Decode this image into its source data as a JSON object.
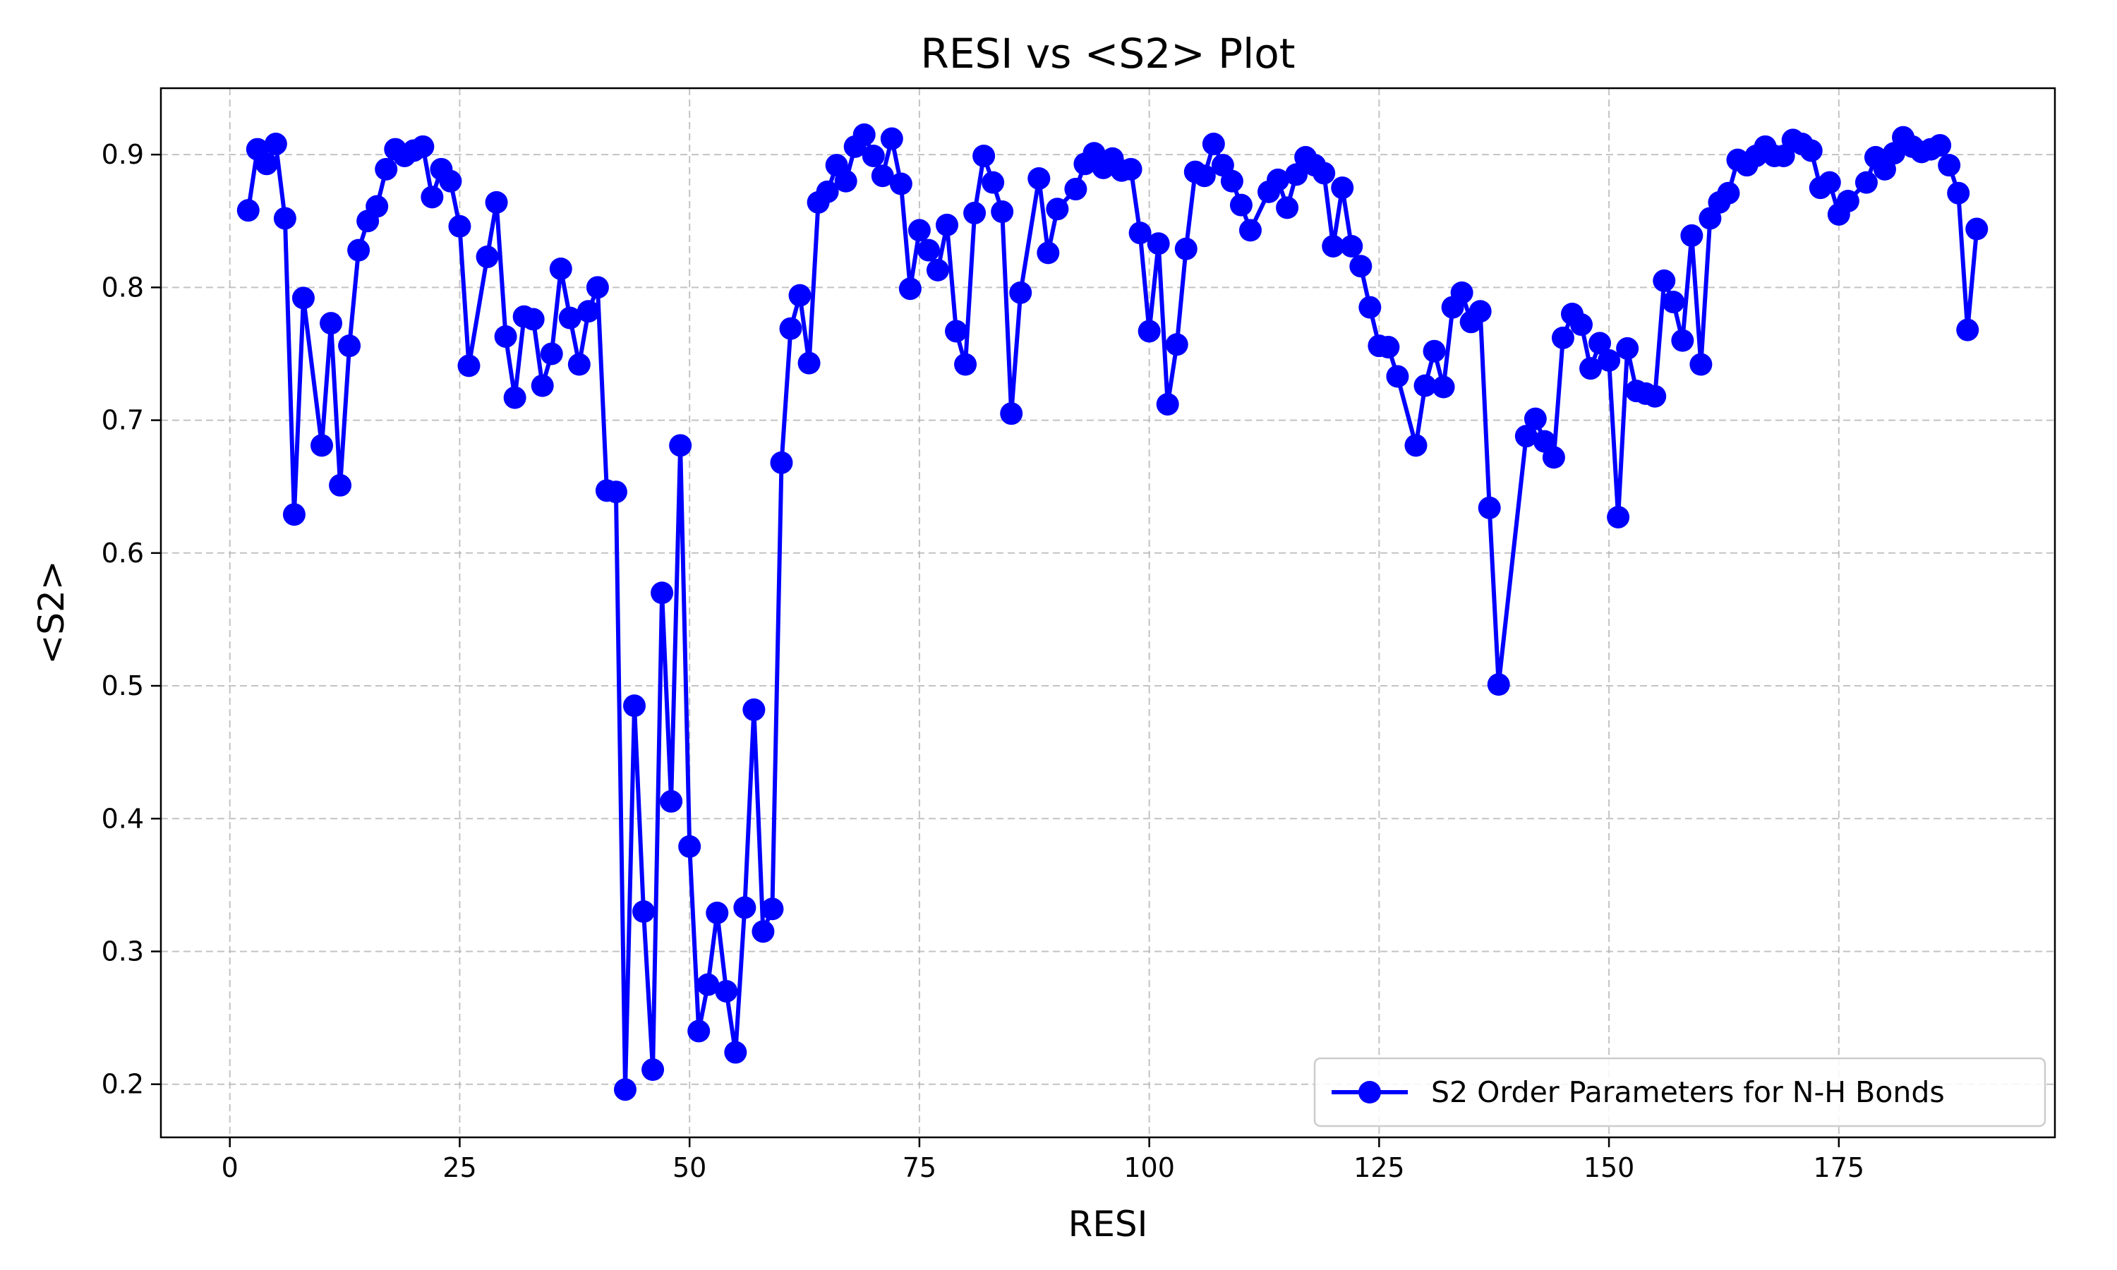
{
  "chart_data": {
    "type": "line",
    "title": "RESI vs <S2> Plot",
    "xlabel": "RESI",
    "ylabel": "<S2>",
    "xlim": [
      -7.5,
      198.5
    ],
    "ylim": [
      0.16,
      0.95
    ],
    "xticks": [
      0,
      25,
      50,
      75,
      100,
      125,
      150,
      175
    ],
    "yticks": [
      0.2,
      0.3,
      0.4,
      0.5,
      0.6,
      0.7,
      0.8,
      0.9
    ],
    "grid": true,
    "legend_position": "lower-right",
    "colors": {
      "series": "#0000ff",
      "grid": "#b0b0b0",
      "axes": "#000000"
    },
    "series": [
      {
        "name": "S2 Order Parameters for N-H Bonds",
        "marker": "circle",
        "x": [
          2,
          3,
          4,
          5,
          6,
          7,
          8,
          10,
          11,
          12,
          13,
          14,
          15,
          16,
          17,
          18,
          19,
          20,
          21,
          22,
          23,
          24,
          25,
          26,
          28,
          29,
          30,
          31,
          32,
          33,
          34,
          35,
          36,
          37,
          38,
          39,
          40,
          41,
          42,
          43,
          44,
          45,
          46,
          47,
          48,
          49,
          50,
          51,
          52,
          53,
          54,
          55,
          56,
          57,
          58,
          59,
          60,
          61,
          62,
          63,
          64,
          65,
          66,
          67,
          68,
          69,
          70,
          71,
          72,
          73,
          74,
          75,
          76,
          77,
          78,
          79,
          80,
          81,
          82,
          83,
          84,
          85,
          86,
          88,
          89,
          90,
          92,
          93,
          94,
          95,
          96,
          97,
          98,
          99,
          100,
          101,
          102,
          103,
          104,
          105,
          106,
          107,
          108,
          109,
          110,
          111,
          113,
          114,
          115,
          116,
          117,
          118,
          119,
          120,
          121,
          122,
          123,
          124,
          125,
          126,
          127,
          129,
          130,
          131,
          132,
          133,
          134,
          135,
          136,
          137,
          138,
          141,
          142,
          143,
          144,
          145,
          146,
          147,
          148,
          149,
          150,
          151,
          152,
          153,
          154,
          155,
          156,
          157,
          158,
          159,
          160,
          161,
          162,
          163,
          164,
          165,
          166,
          167,
          168,
          169,
          170,
          171,
          172,
          173,
          174,
          175,
          176,
          178,
          179,
          180,
          181,
          182,
          183,
          184,
          185,
          186,
          187,
          188,
          189,
          190
        ],
        "y": [
          0.858,
          0.904,
          0.893,
          0.908,
          0.852,
          0.629,
          0.792,
          0.681,
          0.773,
          0.651,
          0.756,
          0.828,
          0.85,
          0.861,
          0.889,
          0.904,
          0.899,
          0.903,
          0.906,
          0.868,
          0.889,
          0.88,
          0.846,
          0.741,
          0.823,
          0.864,
          0.763,
          0.717,
          0.778,
          0.776,
          0.726,
          0.75,
          0.814,
          0.777,
          0.742,
          0.782,
          0.8,
          0.647,
          0.646,
          0.196,
          0.485,
          0.33,
          0.211,
          0.57,
          0.413,
          0.681,
          0.379,
          0.24,
          0.275,
          0.329,
          0.27,
          0.224,
          0.333,
          0.482,
          0.315,
          0.332,
          0.668,
          0.769,
          0.794,
          0.743,
          0.864,
          0.872,
          0.892,
          0.88,
          0.906,
          0.915,
          0.899,
          0.884,
          0.912,
          0.878,
          0.799,
          0.843,
          0.828,
          0.813,
          0.847,
          0.767,
          0.742,
          0.856,
          0.899,
          0.879,
          0.857,
          0.705,
          0.796,
          0.882,
          0.826,
          0.859,
          0.874,
          0.893,
          0.901,
          0.89,
          0.897,
          0.888,
          0.889,
          0.841,
          0.767,
          0.833,
          0.712,
          0.757,
          0.829,
          0.887,
          0.884,
          0.908,
          0.892,
          0.88,
          0.862,
          0.843,
          0.872,
          0.881,
          0.86,
          0.885,
          0.898,
          0.892,
          0.886,
          0.831,
          0.875,
          0.831,
          0.816,
          0.785,
          0.756,
          0.755,
          0.733,
          0.681,
          0.726,
          0.752,
          0.725,
          0.785,
          0.796,
          0.774,
          0.782,
          0.634,
          0.501,
          0.688,
          0.701,
          0.684,
          0.672,
          0.762,
          0.78,
          0.772,
          0.739,
          0.758,
          0.745,
          0.627,
          0.754,
          0.722,
          0.72,
          0.718,
          0.805,
          0.789,
          0.76,
          0.839,
          0.742,
          0.852,
          0.864,
          0.871,
          0.896,
          0.892,
          0.899,
          0.906,
          0.899,
          0.899,
          0.911,
          0.908,
          0.903,
          0.875,
          0.879,
          0.855,
          0.865,
          0.879,
          0.898,
          0.889,
          0.901,
          0.913,
          0.906,
          0.902,
          0.904,
          0.907,
          0.892,
          0.871,
          0.768,
          0.844
        ]
      }
    ]
  }
}
